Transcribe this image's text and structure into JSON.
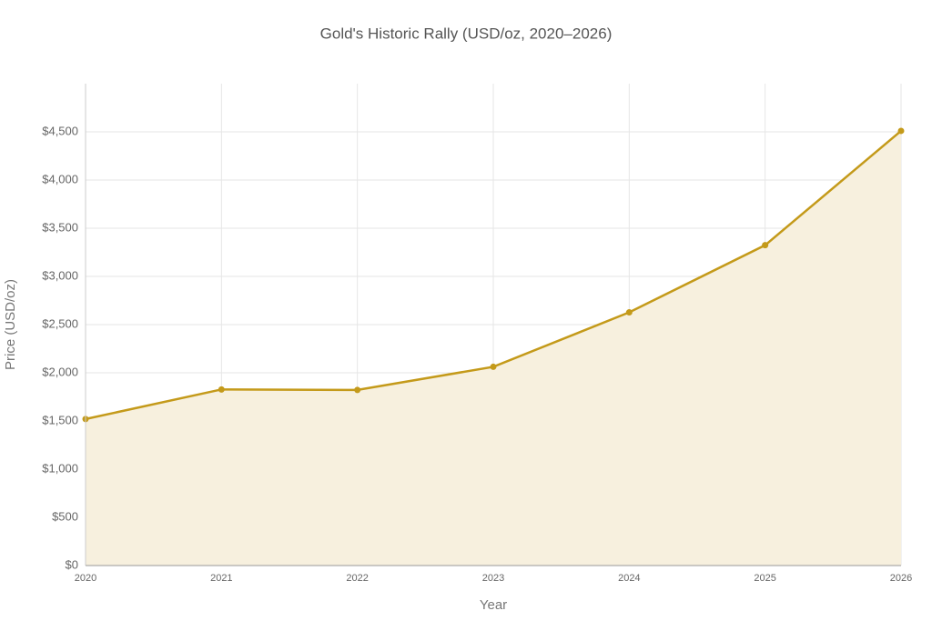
{
  "chart_data": {
    "type": "area",
    "title": "Gold's Historic Rally (USD/oz, 2020–2026)",
    "x_label": "Year",
    "y_label": "Price (USD/oz)",
    "x": [
      2020,
      2021,
      2022,
      2023,
      2024,
      2025,
      2026
    ],
    "values": [
      1520,
      1827,
      1822,
      2062,
      2627,
      3324,
      4510
    ],
    "color": "#c49a1a",
    "fill_color": "#f7f0de",
    "xlim": [
      2020,
      2026
    ],
    "xticks": [
      2020,
      2021,
      2022,
      2023,
      2024,
      2025,
      2026
    ],
    "ylim": [
      0,
      5000
    ],
    "yticks": [
      {
        "value": 0,
        "label": "$0"
      },
      {
        "value": 500,
        "label": "$500"
      },
      {
        "value": 1000,
        "label": "$1,000"
      },
      {
        "value": 1500,
        "label": "$1,500"
      },
      {
        "value": 2000,
        "label": "$2,000"
      },
      {
        "value": 2500,
        "label": "$2,500"
      },
      {
        "value": 3000,
        "label": "$3,000"
      },
      {
        "value": 3500,
        "label": "$3,500"
      },
      {
        "value": 4000,
        "label": "$4,000"
      },
      {
        "value": 4500,
        "label": "$4,500"
      }
    ],
    "grid": true
  }
}
